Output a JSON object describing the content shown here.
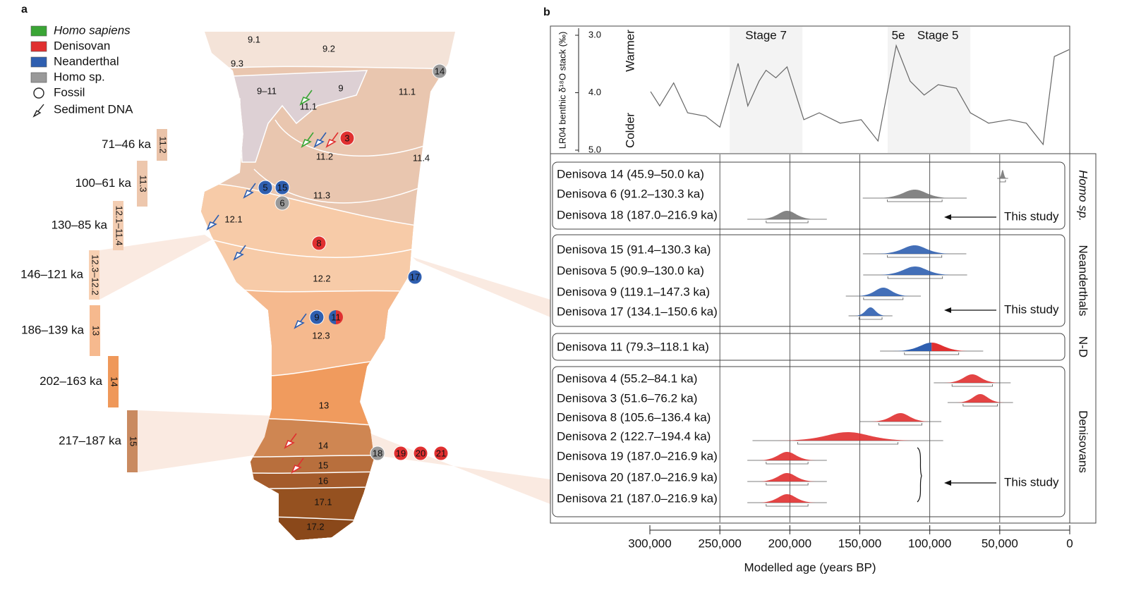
{
  "panel_a": {
    "label": "a",
    "legend": [
      {
        "label": "Homo sapiens",
        "color": "#3aa535"
      },
      {
        "label": "Denisovan",
        "color": "#e03030"
      },
      {
        "label": "Neanderthal",
        "color": "#2f5fb0"
      },
      {
        "label": "Homo sp.",
        "color": "#999999"
      },
      {
        "label": "Fossil"
      },
      {
        "label": "Sediment DNA"
      }
    ],
    "periods": [
      {
        "age": "71–46 ka",
        "layer": "11.2",
        "color": "#eac3a9"
      },
      {
        "age": "100–61 ka",
        "layer": "11.3",
        "color": "#edc7ad"
      },
      {
        "age": "130–85 ka",
        "layer": "12.1–11.4",
        "color": "#f3cdb2"
      },
      {
        "age": "146–121 ka",
        "layer": "12.3–12.2",
        "color": "#f8d0b2"
      },
      {
        "age": "186–139 ka",
        "layer": "13",
        "color": "#f6b98e"
      },
      {
        "age": "202–163 ka",
        "layer": "14",
        "color": "#ef985a"
      },
      {
        "age": "217–187 ka",
        "layer": "15",
        "color": "#c98a60"
      }
    ],
    "layers": [
      "9.1",
      "9.2",
      "9.3",
      "9–11",
      "9",
      "11.1",
      "11.1",
      "11.2",
      "11.4",
      "11.3",
      "12.1",
      "12.2",
      "12.3",
      "13",
      "14",
      "15",
      "16",
      "17.1",
      "17.2"
    ],
    "fossils": [
      {
        "id": "14",
        "colors": [
          "#9a9a9a"
        ]
      },
      {
        "id": "3",
        "colors": [
          "#e03030"
        ]
      },
      {
        "id": "5",
        "colors": [
          "#2f5fb0"
        ]
      },
      {
        "id": "15",
        "colors": [
          "#2f5fb0"
        ]
      },
      {
        "id": "6",
        "colors": [
          "#9a9a9a"
        ]
      },
      {
        "id": "8",
        "colors": [
          "#e03030"
        ]
      },
      {
        "id": "17",
        "colors": [
          "#2f5fb0"
        ]
      },
      {
        "id": "9",
        "colors": [
          "#2f5fb0"
        ]
      },
      {
        "id": "11",
        "colors": [
          "#2f5fb0",
          "#e03030"
        ]
      },
      {
        "id": "18",
        "colors": [
          "#9a9a9a"
        ]
      },
      {
        "id": "19",
        "colors": [
          "#e03030"
        ]
      },
      {
        "id": "20",
        "colors": [
          "#e03030"
        ]
      },
      {
        "id": "21",
        "colors": [
          "#e03030"
        ]
      }
    ]
  },
  "panel_b": {
    "label": "b",
    "xlim": [
      300000,
      0
    ],
    "xticks": [
      {
        "value": 300000,
        "label": "300,000"
      },
      {
        "value": 250000,
        "label": "250,000"
      },
      {
        "value": 200000,
        "label": "200,000"
      },
      {
        "value": 150000,
        "label": "150,000"
      },
      {
        "value": 100000,
        "label": "100,000"
      },
      {
        "value": 50000,
        "label": "50,000"
      },
      0
    ],
    "xlabel": "Modelled age (years BP)",
    "climate": {
      "ylabel": "LR04 benthic δ¹⁸O stack (‰)",
      "ylim": [
        3.0,
        5.0
      ],
      "yticks": [
        {
          "value": 3,
          "label": "3.0"
        },
        {
          "value": 4,
          "label": "4.0"
        },
        {
          "value": 5,
          "label": "5.0"
        }
      ],
      "warm_label": "Warmer",
      "cold_label": "Colder",
      "color": "#666666",
      "x": [
        299500,
        293000,
        283000,
        273000,
        260000,
        250000,
        237000,
        230000,
        222000,
        217000,
        210000,
        202000,
        190000,
        179000,
        164000,
        149000,
        137000,
        124000,
        114000,
        104000,
        94000,
        81000,
        71000,
        58000,
        43000,
        31000,
        19000,
        11000,
        500
      ],
      "values": [
        3.98,
        4.23,
        3.83,
        4.35,
        4.41,
        4.6,
        3.49,
        4.23,
        3.8,
        3.61,
        3.74,
        3.55,
        4.47,
        4.35,
        4.53,
        4.47,
        4.84,
        3.18,
        3.8,
        4.04,
        3.86,
        3.92,
        4.35,
        4.53,
        4.47,
        4.53,
        4.9,
        3.37,
        3.25
      ],
      "stages": [
        {
          "label": "Stage 7",
          "range": [
            191000,
            243000
          ]
        },
        {
          "label": "5e",
          "range": [
            115000,
            130000
          ]
        },
        {
          "label": "Stage 5",
          "range": [
            71000,
            130000
          ]
        }
      ]
    },
    "groups": [
      {
        "name": "Homo sp.",
        "colors": [
          "#777777"
        ],
        "note": "This study",
        "specimens": [
          {
            "label": "Denisova 14 (45.9–50.0 ka)",
            "range": [
              45900,
              50000
            ]
          },
          {
            "label": "Denisova 6 (91.2–130.3 ka)",
            "range": [
              91200,
              130300
            ]
          },
          {
            "label": "Denisova 18 (187.0–216.9 ka)",
            "range": [
              187000,
              216900
            ]
          }
        ]
      },
      {
        "name": "Neanderthals",
        "colors": [
          "#2f5fb0"
        ],
        "note": "This study",
        "specimens": [
          {
            "label": "Denisova 15 (91.4–130.3 ka)",
            "range": [
              91400,
              130300
            ]
          },
          {
            "label": "Denisova 5 (90.9–130.0 ka)",
            "range": [
              90900,
              130000
            ]
          },
          {
            "label": "Denisova 9 (119.1–147.3 ka)",
            "range": [
              119100,
              147300
            ]
          },
          {
            "label": "Denisova 17 (134.1–150.6 ka)",
            "range": [
              134100,
              150600
            ]
          }
        ]
      },
      {
        "name": "N-D",
        "colors": [
          "#2f5fb0",
          "#e03030"
        ],
        "specimens": [
          {
            "label": "Denisova 11 (79.3–118.1 ka)",
            "range": [
              79300,
              118100
            ]
          }
        ]
      },
      {
        "name": "Denisovans",
        "colors": [
          "#e03030"
        ],
        "note": "This study",
        "specimens": [
          {
            "label": "Denisova 4 (55.2–84.1 ka)",
            "range": [
              55200,
              84100
            ]
          },
          {
            "label": "Denisova 3 (51.6–76.2 ka)",
            "range": [
              51600,
              76200
            ]
          },
          {
            "label": "Denisova 8 (105.6–136.4 ka)",
            "range": [
              105600,
              136400
            ]
          },
          {
            "label": "Denisova 2 (122.7–194.4 ka)",
            "range": [
              122700,
              194400
            ]
          },
          {
            "label": "Denisova 19 (187.0–216.9 ka)",
            "range": [
              187000,
              216900
            ]
          },
          {
            "label": "Denisova 20 (187.0–216.9 ka)",
            "range": [
              187000,
              216900
            ]
          },
          {
            "label": "Denisova 21 (187.0–216.9 ka)",
            "range": [
              187000,
              216900
            ]
          }
        ]
      }
    ]
  }
}
